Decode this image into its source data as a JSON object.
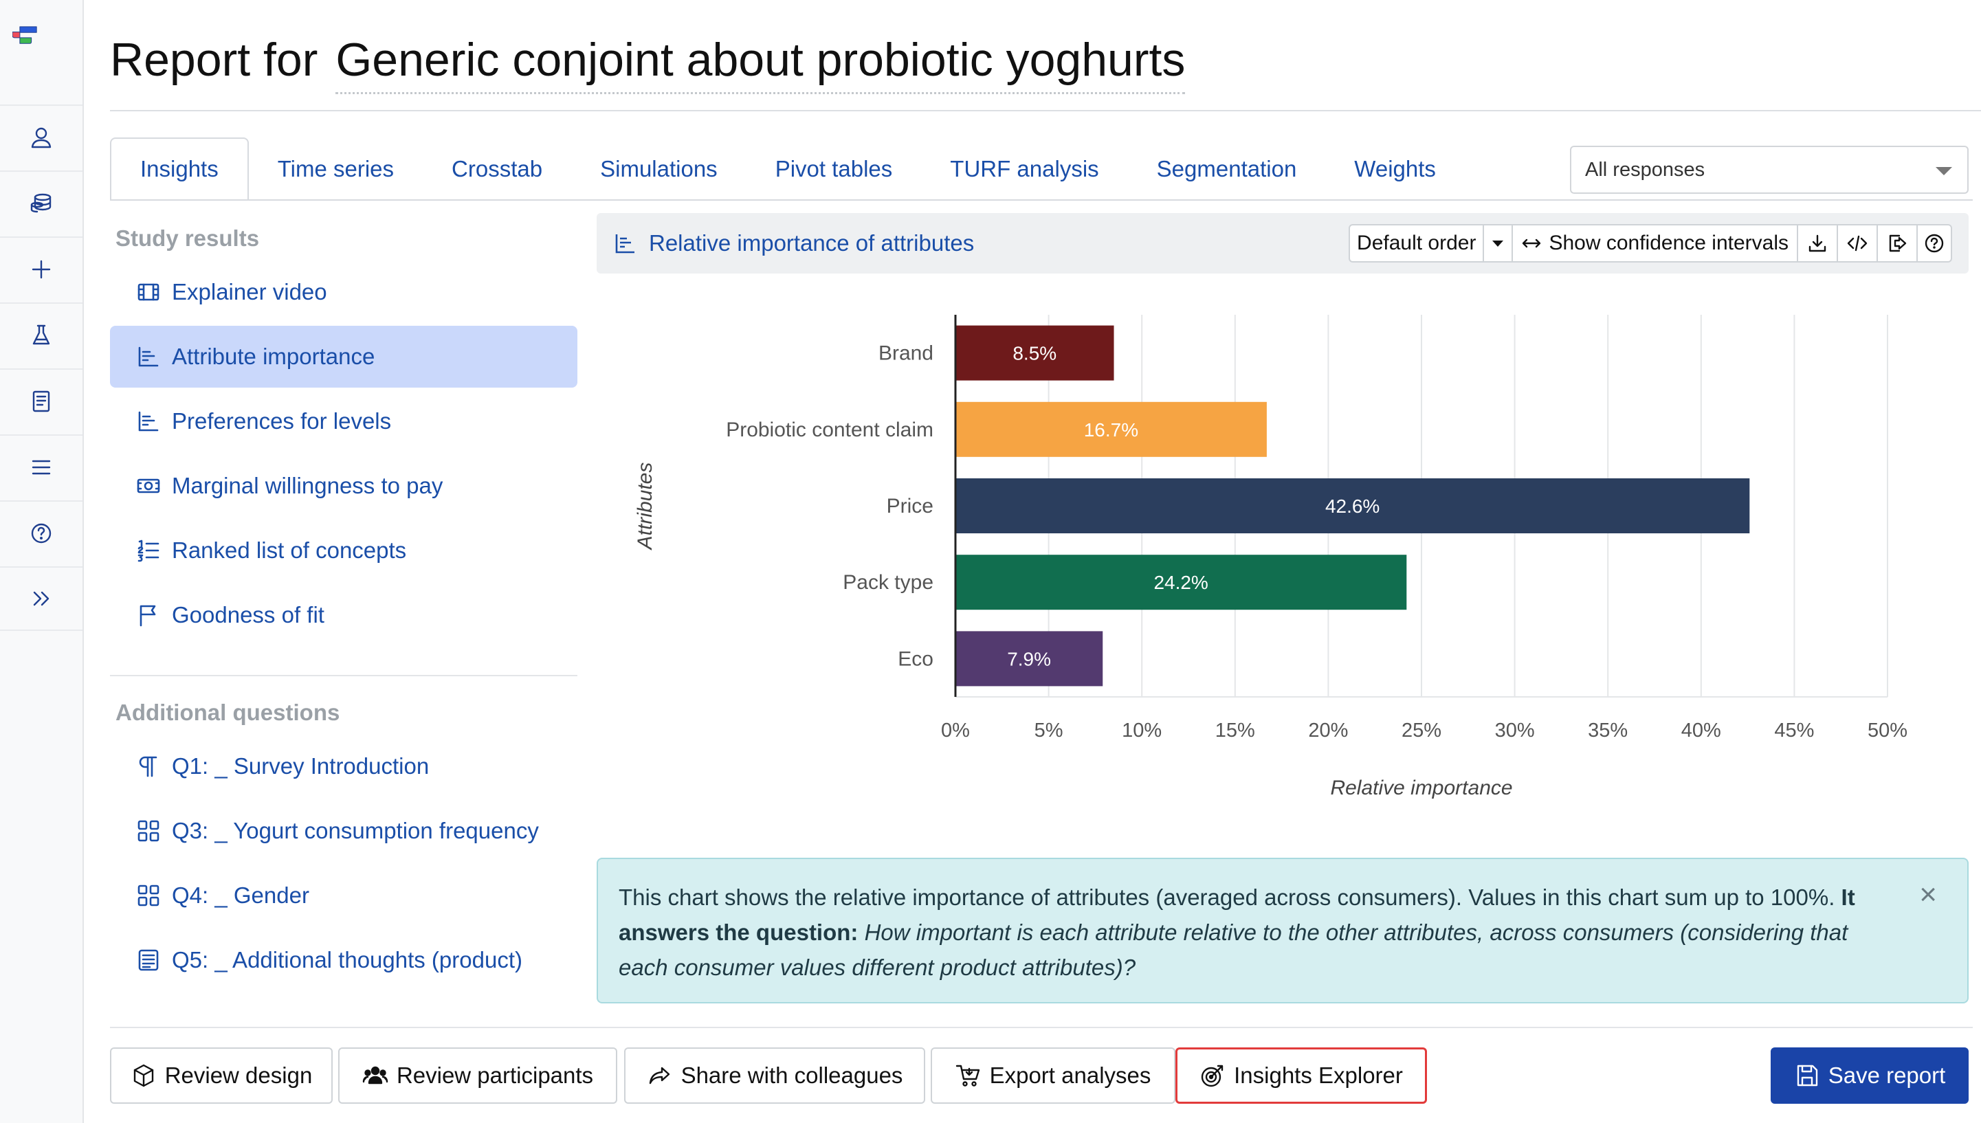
{
  "header": {
    "title_prefix": "Report for",
    "study_name": "Generic conjoint about probiotic yoghurts"
  },
  "rail": {
    "items": [
      "user-icon",
      "database-icon",
      "plus-icon",
      "flask-icon",
      "notebook-icon",
      "menu-icon",
      "help-icon",
      "expand-icon"
    ]
  },
  "tabs": [
    {
      "label": "Insights",
      "active": true
    },
    {
      "label": "Time series"
    },
    {
      "label": "Crosstab"
    },
    {
      "label": "Simulations"
    },
    {
      "label": "Pivot tables"
    },
    {
      "label": "TURF analysis"
    },
    {
      "label": "Segmentation"
    },
    {
      "label": "Weights"
    }
  ],
  "response_filter": {
    "value": "All responses"
  },
  "sidebar": {
    "study_results_heading": "Study results",
    "study_results": [
      {
        "label": "Explainer video",
        "icon": "film-icon"
      },
      {
        "label": "Attribute importance",
        "icon": "bar-chart-icon",
        "active": true
      },
      {
        "label": "Preferences for levels",
        "icon": "bar-chart-icon"
      },
      {
        "label": "Marginal willingness to pay",
        "icon": "money-icon"
      },
      {
        "label": "Ranked list of concepts",
        "icon": "ranked-list-icon"
      },
      {
        "label": "Goodness of fit",
        "icon": "flag-icon"
      }
    ],
    "additional_heading": "Additional questions",
    "additional": [
      {
        "label": "Q1: _ Survey Introduction",
        "icon": "paragraph-icon"
      },
      {
        "label": "Q3: _ Yogurt consumption frequency",
        "icon": "grid-icon"
      },
      {
        "label": "Q4: _ Gender",
        "icon": "grid-icon"
      },
      {
        "label": "Q5: _ Additional thoughts (product)",
        "icon": "text-icon"
      }
    ]
  },
  "panel": {
    "title": "Relative importance of attributes",
    "order_label": "Default order",
    "ci_label": "Show confidence intervals"
  },
  "chart_data": {
    "type": "bar",
    "orientation": "horizontal",
    "categories": [
      "Brand",
      "Probiotic content claim",
      "Price",
      "Pack type",
      "Eco"
    ],
    "values": [
      8.5,
      16.7,
      42.6,
      24.2,
      7.9
    ],
    "value_labels": [
      "8.5%",
      "16.7%",
      "42.6%",
      "24.2%",
      "7.9%"
    ],
    "colors": [
      "#6e1a1b",
      "#f6a443",
      "#2b3e5e",
      "#116e4f",
      "#533a6f"
    ],
    "xlabel": "Relative importance",
    "ylabel": "Attributes",
    "xlim": [
      0,
      50
    ],
    "xticks": [
      0,
      5,
      10,
      15,
      20,
      25,
      30,
      35,
      40,
      45,
      50
    ],
    "xtick_labels": [
      "0%",
      "5%",
      "10%",
      "15%",
      "20%",
      "25%",
      "30%",
      "35%",
      "40%",
      "45%",
      "50%"
    ],
    "grid": true
  },
  "info": {
    "text1": "This chart shows the relative importance of attributes (averaged across consumers). Values in this chart sum up to 100%.",
    "bold": "It answers the question:",
    "italic": "How important is each attribute relative to the other attributes, across consumers (considering that each consumer values different product attributes)?",
    "close": "×"
  },
  "footer": {
    "review_design": "Review design",
    "review_participants": "Review participants",
    "share": "Share with colleagues",
    "export": "Export analyses",
    "insights_explorer": "Insights Explorer",
    "save": "Save report"
  }
}
